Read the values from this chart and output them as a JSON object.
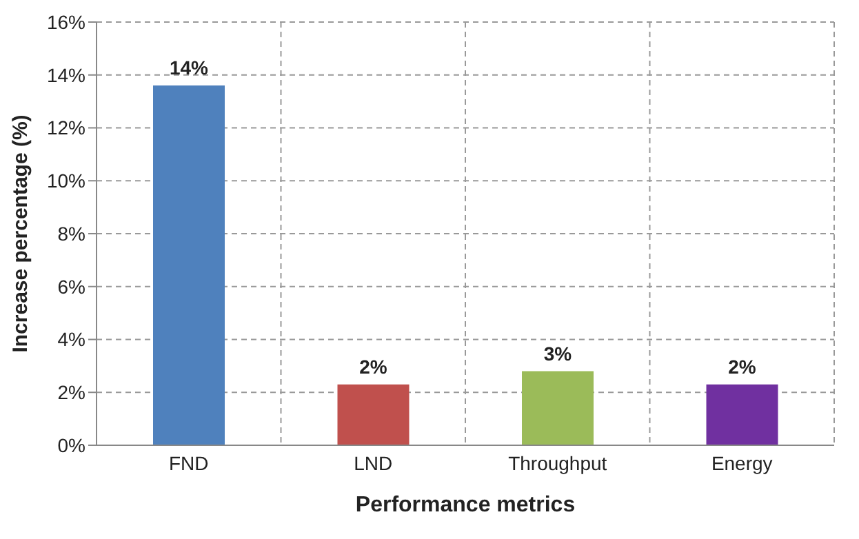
{
  "chart_data": {
    "type": "bar",
    "xlabel": "Performance metrics",
    "ylabel": "Increase percentage (%)",
    "categories": [
      "FND",
      "LND",
      "Throughput",
      "Energy"
    ],
    "values": [
      13.6,
      2.3,
      2.8,
      2.3
    ],
    "colors": [
      "#4f81bd",
      "#c0504d",
      "#9bbb59",
      "#7030a0"
    ],
    "value_labels": [
      "14%",
      "2%",
      "3%",
      "2%"
    ],
    "ylim": [
      0,
      16
    ],
    "yticks": [
      {
        "value": 0,
        "label": "0%"
      },
      {
        "value": 2,
        "label": "2%"
      },
      {
        "value": 4,
        "label": "4%"
      },
      {
        "value": 6,
        "label": "6%"
      },
      {
        "value": 8,
        "label": "8%"
      },
      {
        "value": 10,
        "label": "10%"
      },
      {
        "value": 12,
        "label": "12%"
      },
      {
        "value": 14,
        "label": "14%"
      },
      {
        "value": 16,
        "label": "16%"
      }
    ],
    "grid": true
  }
}
